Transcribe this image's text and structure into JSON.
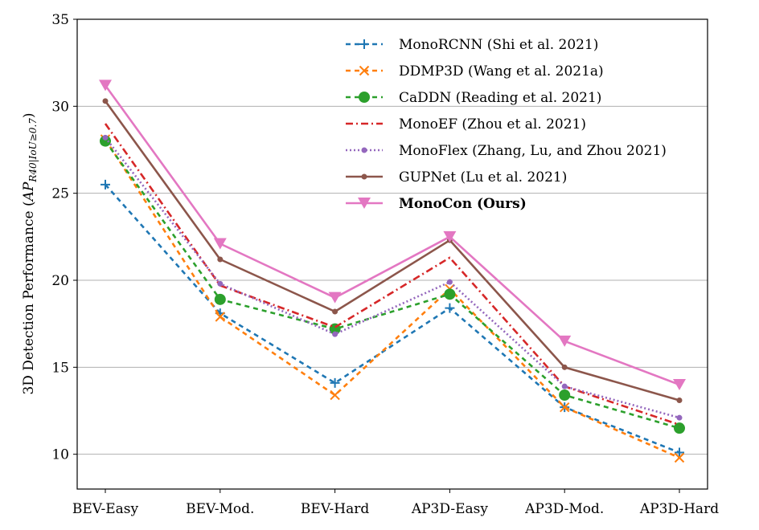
{
  "chart_data": {
    "type": "line",
    "categories": [
      "BEV-Easy",
      "BEV-Mod.",
      "BEV-Hard",
      "AP3D-Easy",
      "AP3D-Mod.",
      "AP3D-Hard"
    ],
    "ylabel_main": "3D Detection Performance (",
    "ylabel_ap": "AP",
    "ylabel_sub": "R40|IoU≥0.7",
    "ylabel_close": ")",
    "ylim": [
      8,
      35
    ],
    "yticks": [
      "10",
      "15",
      "20",
      "25",
      "30",
      "35"
    ],
    "grid": "horizontal",
    "legend_position": "top-right",
    "series": [
      {
        "name": "MonoRCNN (Shi et al. 2021)",
        "values": [
          25.5,
          18.1,
          14.1,
          18.4,
          12.7,
          10.1
        ],
        "color": "#1f77b4",
        "dash": "6,5",
        "marker": "plus",
        "bold": false
      },
      {
        "name": "DDMP3D (Wang et al. 2021a)",
        "values": [
          28.1,
          17.9,
          13.4,
          19.5,
          12.7,
          9.8
        ],
        "color": "#ff7f0e",
        "dash": "6,5",
        "marker": "x",
        "bold": false
      },
      {
        "name": "CaDDN (Reading et al. 2021)",
        "values": [
          28.0,
          18.9,
          17.2,
          19.2,
          13.4,
          11.5
        ],
        "color": "#2ca02c",
        "dash": "6,5",
        "marker": "circle-large",
        "bold": false
      },
      {
        "name": "MonoEF (Zhou et al. 2021)",
        "values": [
          29.0,
          19.7,
          17.3,
          21.3,
          13.9,
          11.7
        ],
        "color": "#d62728",
        "dash": "9,4,2,4",
        "marker": "none",
        "bold": false
      },
      {
        "name": "MonoFlex (Zhang, Lu, and Zhou 2021)",
        "values": [
          28.2,
          19.8,
          16.9,
          19.9,
          13.9,
          12.1
        ],
        "color": "#9467bd",
        "dash": "2,3",
        "marker": "circle-small",
        "bold": false
      },
      {
        "name": "GUPNet (Lu et al. 2021)",
        "values": [
          30.3,
          21.2,
          18.2,
          22.3,
          15.0,
          13.1
        ],
        "color": "#8c564b",
        "dash": "",
        "marker": "circle-small",
        "bold": false
      },
      {
        "name": "MonoCon (Ours)",
        "values": [
          31.2,
          22.1,
          19.0,
          22.5,
          16.5,
          14.0
        ],
        "color": "#e377c2",
        "dash": "",
        "marker": "triangle-down",
        "bold": true
      }
    ]
  }
}
